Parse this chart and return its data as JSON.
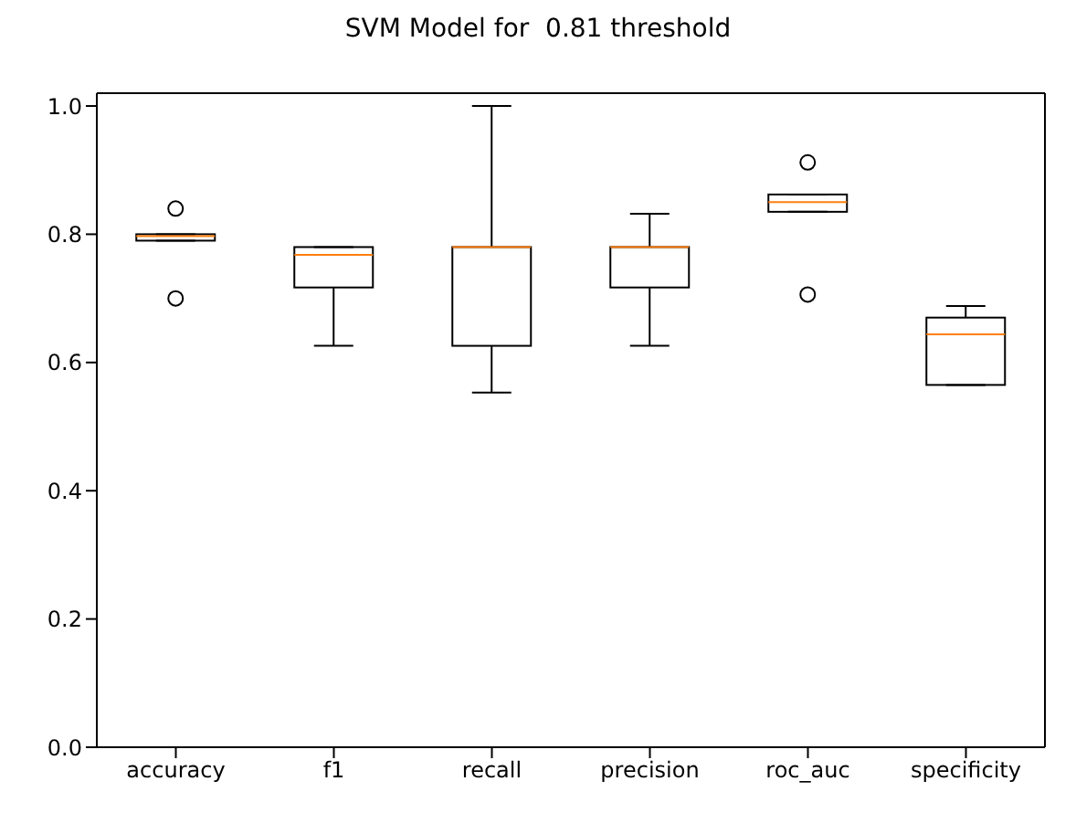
{
  "chart_data": {
    "type": "box",
    "title": "SVM Model for  0.81 threshold",
    "categories": [
      "accuracy",
      "f1",
      "recall",
      "precision",
      "roc_auc",
      "specificity"
    ],
    "boxes": [
      {
        "low": 0.79,
        "q1": 0.79,
        "median": 0.797,
        "q3": 0.8,
        "high": 0.8,
        "outliers": [
          0.84,
          0.7
        ]
      },
      {
        "low": 0.626,
        "q1": 0.717,
        "median": 0.768,
        "q3": 0.78,
        "high": 0.78
      },
      {
        "low": 0.553,
        "q1": 0.626,
        "median": 0.78,
        "q3": 0.78,
        "high": 1.0
      },
      {
        "low": 0.626,
        "q1": 0.717,
        "median": 0.78,
        "q3": 0.78,
        "high": 0.832
      },
      {
        "low": 0.835,
        "q1": 0.835,
        "median": 0.85,
        "q3": 0.862,
        "high": 0.862,
        "outliers": [
          0.912,
          0.706
        ]
      },
      {
        "low": 0.565,
        "q1": 0.565,
        "median": 0.644,
        "q3": 0.67,
        "high": 0.688
      }
    ],
    "ylim": [
      0,
      1.02
    ],
    "yticks": [
      {
        "value": 0,
        "label": "0.0"
      },
      {
        "value": 0.2,
        "label": "0.2"
      },
      {
        "value": 0.4,
        "label": "0.4"
      },
      {
        "value": 0.6,
        "label": "0.6"
      },
      {
        "value": 0.8,
        "label": "0.8"
      },
      {
        "value": 1,
        "label": "1.0"
      }
    ],
    "grid": false
  }
}
